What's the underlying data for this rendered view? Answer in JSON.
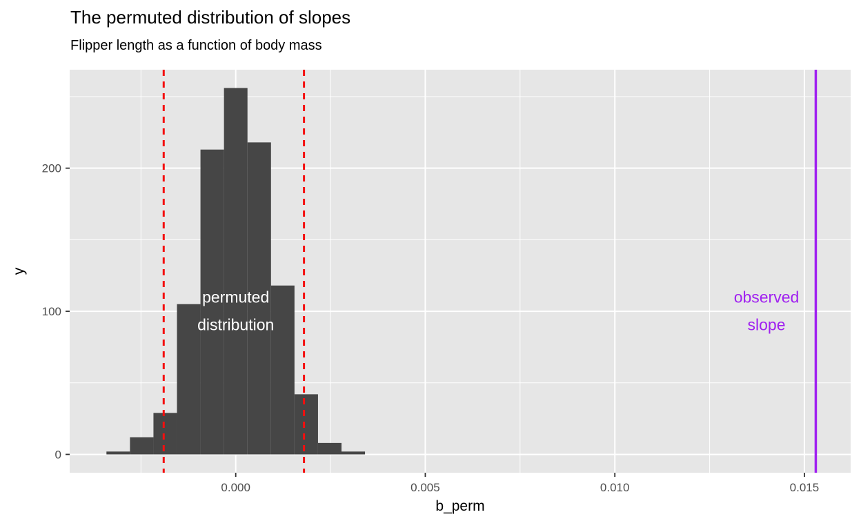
{
  "chart_data": {
    "type": "bar",
    "subtype": "histogram",
    "title": "The permuted distribution of slopes",
    "subtitle": "Flipper length as a function of body mass",
    "xlabel": "b_perm",
    "ylabel": "y",
    "grid": true,
    "legend": "none",
    "xlim": [
      -0.00438,
      0.01622
    ],
    "ylim": [
      -12.8,
      268.8
    ],
    "bin_width": 0.00062,
    "bin_centers": [
      -0.0031,
      -0.00248,
      -0.00186,
      -0.00124,
      -0.00062,
      0.0,
      0.00062,
      0.00124,
      0.00186,
      0.00248,
      0.0031
    ],
    "counts": [
      2,
      12,
      29,
      105,
      213,
      256,
      218,
      118,
      42,
      8,
      2
    ],
    "x_ticks": [
      {
        "value": 0.0,
        "label": "0.000"
      },
      {
        "value": 0.005,
        "label": "0.005"
      },
      {
        "value": 0.01,
        "label": "0.010"
      },
      {
        "value": 0.015,
        "label": "0.015"
      }
    ],
    "y_ticks": [
      {
        "value": 0,
        "label": "0"
      },
      {
        "value": 100,
        "label": "100"
      },
      {
        "value": 200,
        "label": "200"
      }
    ],
    "x_minor": [
      -0.0025,
      0.0025,
      0.0075,
      0.0125
    ],
    "y_minor": [
      50,
      150,
      250
    ],
    "vlines": [
      {
        "name": "ci-lower",
        "x": -0.0019,
        "color": "#F40F0F",
        "dash": "9 8",
        "width": 3
      },
      {
        "name": "ci-upper",
        "x": 0.0018,
        "color": "#F40F0F",
        "dash": "9 8",
        "width": 3
      },
      {
        "name": "observed-slope",
        "x": 0.0153,
        "color": "#A020F0",
        "dash": null,
        "width": 3.5
      }
    ],
    "annotations": [
      {
        "name": "permuted-distribution-label",
        "lines": [
          "permuted",
          "distribution"
        ],
        "x": 0.0,
        "y_counts": 110,
        "color": "#FFFFFF"
      },
      {
        "name": "observed-slope-label",
        "lines": [
          "observed",
          "slope"
        ],
        "x": 0.014,
        "y_counts": 110,
        "color": "#A020F0"
      }
    ]
  },
  "style": {
    "panel_bg": "#E6E6E6",
    "grid_color": "#FFFFFF",
    "bar_fill": "#464646",
    "tick_mark_color": "#333333",
    "tick_text_color": "#4D4D4D",
    "annotation_font_size": 23,
    "tick_font_size": 17
  }
}
